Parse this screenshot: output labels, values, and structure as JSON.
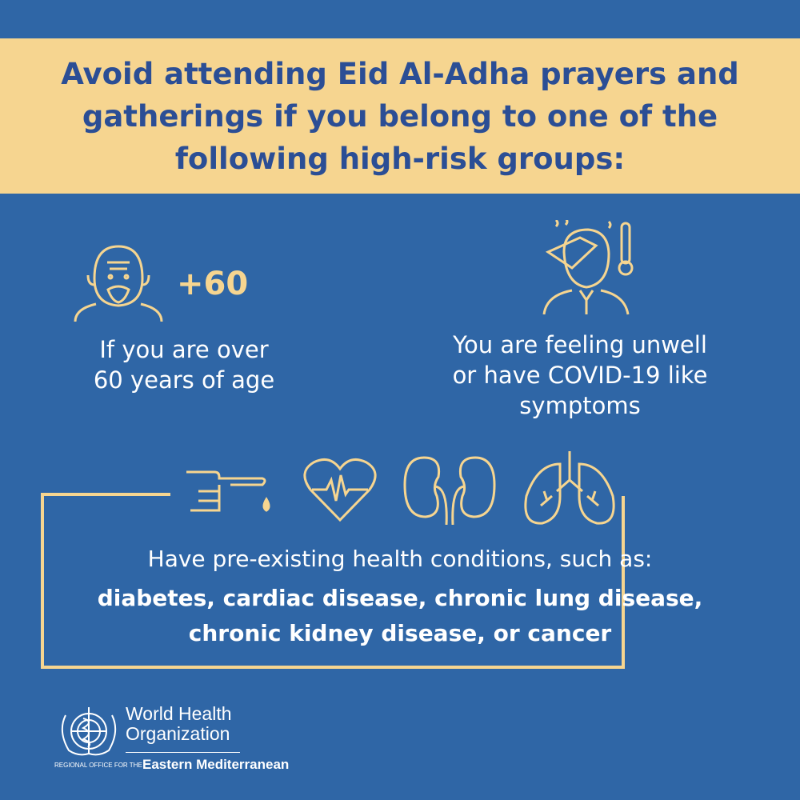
{
  "header": {
    "title": "Avoid attending Eid Al-Adha prayers and gatherings if you belong to one of the following high-risk groups:"
  },
  "groups": [
    {
      "icon": "elderly-person-icon",
      "badge": "+60",
      "text_lines": [
        "If you are over",
        "60 years of age"
      ]
    },
    {
      "icon": "sick-person-thermometer-icon",
      "text_lines": [
        "You are feeling unwell",
        "or have COVID-19 like",
        "symptoms"
      ]
    }
  ],
  "conditions": {
    "icons": [
      "finger-blood-drop-icon",
      "heart-pulse-icon",
      "kidneys-icon",
      "lungs-icon"
    ],
    "intro": "Have pre-existing health conditions, such as:",
    "list_lines": [
      "diabetes, cardiac disease, chronic lung disease,",
      "chronic kidney disease, or cancer"
    ]
  },
  "footer": {
    "org_line1": "World Health",
    "org_line2": "Organization",
    "regional": "REGIONAL OFFICE FOR THE",
    "region": "Eastern Mediterranean"
  },
  "colors": {
    "background": "#2f66a6",
    "accent": "#f6d590",
    "title": "#2b4e95"
  }
}
